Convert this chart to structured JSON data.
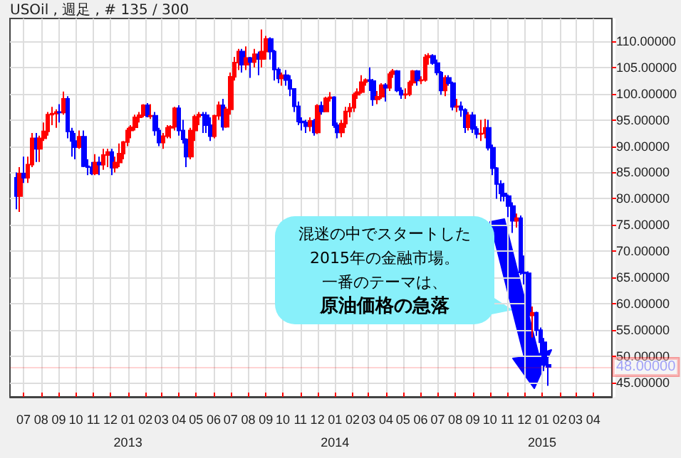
{
  "chart_data": {
    "type": "candlestick",
    "title": "USOil , 週足 , # 135 / 300",
    "colors": [
      "#0000ff",
      "#ff0000",
      "#0000ff",
      "#ff0000",
      "#ff0000",
      "#0000ff",
      "#ff0000",
      "#ff0000",
      "#ff0000",
      "#ff0000",
      "#ff0000",
      "#0000ff",
      "#ff0000",
      "#0000ff",
      "#0000ff",
      "#0000ff",
      "#ff0000",
      "#0000ff",
      "#0000ff",
      "#0000ff",
      "#ff0000",
      "#0000ff",
      "#ff0000",
      "#ff0000",
      "#0000ff",
      "#ff0000",
      "#ff0000",
      "#ff0000",
      "#ff0000",
      "#ff0000",
      "#ff0000",
      "#ff0000",
      "#ff0000",
      "#0000ff",
      "#ff0000",
      "#0000ff",
      "#0000ff",
      "#ff0000",
      "#ff0000",
      "#ff0000",
      "#ff0000",
      "#0000ff",
      "#0000ff",
      "#0000ff",
      "#ff0000",
      "#ff0000",
      "#ff0000",
      "#0000ff",
      "#0000ff",
      "#0000ff",
      "#ff0000",
      "#ff0000",
      "#0000ff",
      "#ff0000",
      "#ff0000",
      "#ff0000",
      "#ff0000",
      "#0000ff",
      "#ff0000",
      "#0000ff",
      "#ff0000",
      "#0000ff",
      "#ff0000",
      "#ff0000",
      "#0000ff",
      "#0000ff",
      "#0000ff",
      "#ff0000",
      "#0000ff",
      "#0000ff",
      "#0000ff",
      "#0000ff",
      "#0000ff",
      "#0000ff",
      "#ff0000",
      "#0000ff",
      "#ff0000",
      "#0000ff",
      "#ff0000",
      "#ff0000",
      "#0000ff",
      "#0000ff",
      "#ff0000",
      "#ff0000",
      "#ff0000",
      "#ff0000",
      "#ff0000",
      "#ff0000",
      "#ff0000",
      "#0000ff",
      "#0000ff",
      "#ff0000",
      "#ff0000",
      "#0000ff",
      "#ff0000",
      "#ff0000",
      "#0000ff",
      "#0000ff",
      "#ff0000",
      "#ff0000",
      "#ff0000",
      "#0000ff",
      "#ff0000",
      "#ff0000",
      "#ff0000",
      "#0000ff",
      "#0000ff",
      "#0000ff",
      "#ff0000",
      "#0000ff",
      "#0000ff",
      "#ff0000",
      "#0000ff",
      "#0000ff",
      "#ff0000",
      "#0000ff",
      "#0000ff",
      "#ff0000",
      "#ff0000",
      "#0000ff",
      "#0000ff",
      "#0000ff",
      "#0000ff",
      "#0000ff",
      "#0000ff",
      "#0000ff",
      "#ff0000",
      "#0000ff",
      "#0000ff",
      "#0000ff",
      "#ff0000",
      "#0000ff",
      "#0000ff",
      "#0000ff",
      "#0000ff"
    ],
    "x": [
      "2012-06-18",
      "2012-06-25",
      "2012-07-02",
      "2012-07-09",
      "2012-07-16",
      "2012-07-23",
      "2012-07-30",
      "2012-08-06",
      "2012-08-13",
      "2012-08-20",
      "2012-08-27",
      "2012-09-03",
      "2012-09-10",
      "2012-09-17",
      "2012-09-24",
      "2012-10-01",
      "2012-10-08",
      "2012-10-15",
      "2012-10-22",
      "2012-10-29",
      "2012-11-05",
      "2012-11-12",
      "2012-11-19",
      "2012-11-26",
      "2012-12-03",
      "2012-12-10",
      "2012-12-17",
      "2012-12-24",
      "2012-12-31",
      "2013-01-07",
      "2013-01-14",
      "2013-01-21",
      "2013-01-28",
      "2013-02-04",
      "2013-02-11",
      "2013-02-18",
      "2013-02-25",
      "2013-03-04",
      "2013-03-11",
      "2013-03-18",
      "2013-03-25",
      "2013-04-01",
      "2013-04-08",
      "2013-04-15",
      "2013-04-22",
      "2013-04-29",
      "2013-05-06",
      "2013-05-13",
      "2013-05-20",
      "2013-05-27",
      "2013-06-03",
      "2013-06-10",
      "2013-06-17",
      "2013-06-24",
      "2013-07-01",
      "2013-07-08",
      "2013-07-15",
      "2013-07-22",
      "2013-07-29",
      "2013-08-05",
      "2013-08-12",
      "2013-08-19",
      "2013-08-26",
      "2013-09-02",
      "2013-09-09",
      "2013-09-16",
      "2013-09-23",
      "2013-09-30",
      "2013-10-07",
      "2013-10-14",
      "2013-10-21",
      "2013-10-28",
      "2013-11-04",
      "2013-11-11",
      "2013-11-18",
      "2013-11-25",
      "2013-12-02",
      "2013-12-09",
      "2013-12-16",
      "2013-12-23",
      "2013-12-30",
      "2014-01-06",
      "2014-01-13",
      "2014-01-20",
      "2014-01-27",
      "2014-02-03",
      "2014-02-10",
      "2014-02-17",
      "2014-02-24",
      "2014-03-03",
      "2014-03-10",
      "2014-03-17",
      "2014-03-24",
      "2014-03-31",
      "2014-04-07",
      "2014-04-14",
      "2014-04-21",
      "2014-04-28",
      "2014-05-05",
      "2014-05-12",
      "2014-05-19",
      "2014-05-26",
      "2014-06-02",
      "2014-06-09",
      "2014-06-16",
      "2014-06-23",
      "2014-06-30",
      "2014-07-07",
      "2014-07-14",
      "2014-07-21",
      "2014-07-28",
      "2014-08-04",
      "2014-08-11",
      "2014-08-18",
      "2014-08-25",
      "2014-09-01",
      "2014-09-08",
      "2014-09-15",
      "2014-09-22",
      "2014-09-29",
      "2014-10-06",
      "2014-10-13",
      "2014-10-20",
      "2014-10-27",
      "2014-11-03",
      "2014-11-10",
      "2014-11-17",
      "2014-11-24",
      "2014-12-01",
      "2014-12-08",
      "2014-12-15",
      "2014-12-22",
      "2014-12-29",
      "2015-01-05",
      "2015-01-12"
    ],
    "ohlc": [
      [
        84,
        85,
        78,
        80.5
      ],
      [
        80.5,
        86,
        77.5,
        84.8
      ],
      [
        84.8,
        88,
        83,
        84
      ],
      [
        84,
        88,
        83,
        86.5
      ],
      [
        86.5,
        92.5,
        86,
        91.5
      ],
      [
        91.5,
        92.5,
        87,
        89.5
      ],
      [
        89.5,
        92,
        87,
        91.5
      ],
      [
        91.5,
        94.5,
        91,
        92.8
      ],
      [
        92.8,
        96.5,
        92,
        96
      ],
      [
        96,
        97.5,
        94,
        96.2
      ],
      [
        96.2,
        97,
        93.5,
        96.5
      ],
      [
        96.5,
        98,
        94.5,
        96.4
      ],
      [
        96.4,
        100.4,
        96,
        99
      ],
      [
        99,
        99.5,
        91.5,
        92.8
      ],
      [
        92.8,
        93.5,
        88,
        91
      ],
      [
        91,
        92.5,
        87.5,
        89.8
      ],
      [
        89.8,
        93,
        89.5,
        91.8
      ],
      [
        91.8,
        93,
        86,
        86.2
      ],
      [
        86.2,
        87.5,
        84.5,
        86
      ],
      [
        86,
        87,
        84.5,
        84.8
      ],
      [
        84.8,
        88.5,
        84.5,
        86.9
      ],
      [
        86.9,
        88,
        84.5,
        86.5
      ],
      [
        86.5,
        89.5,
        85.5,
        88.3
      ],
      [
        88.3,
        89.5,
        86,
        88.9
      ],
      [
        88.9,
        89.5,
        84.5,
        85.9
      ],
      [
        85.9,
        88,
        85,
        86.9
      ],
      [
        86.9,
        90.5,
        86,
        88.6
      ],
      [
        88.6,
        91,
        87.5,
        90.8
      ],
      [
        90.8,
        93.5,
        90,
        93
      ],
      [
        93,
        94,
        91.5,
        93.6
      ],
      [
        93.6,
        96,
        93,
        95.5
      ],
      [
        95.5,
        96.5,
        94.5,
        95.9
      ],
      [
        95.9,
        98,
        95.5,
        97.8
      ],
      [
        97.8,
        98.2,
        95.5,
        95.7
      ],
      [
        95.7,
        98,
        95.2,
        95.8
      ],
      [
        95.8,
        96.5,
        92,
        93
      ],
      [
        93,
        93.5,
        90,
        90.7
      ],
      [
        90.7,
        92.5,
        89.5,
        91.9
      ],
      [
        91.9,
        94,
        91.5,
        93.5
      ],
      [
        93.5,
        94,
        91.5,
        93.7
      ],
      [
        93.7,
        97.5,
        93,
        97.2
      ],
      [
        97.2,
        97.8,
        92,
        93
      ],
      [
        93,
        95,
        90.5,
        91.3
      ],
      [
        91.3,
        91.5,
        86,
        88
      ],
      [
        88,
        93.5,
        87.5,
        93
      ],
      [
        93,
        96,
        91,
        95.6
      ],
      [
        95.6,
        96.5,
        94,
        96
      ],
      [
        96,
        96.5,
        92.5,
        95.9
      ],
      [
        95.9,
        96.5,
        92.5,
        94
      ],
      [
        94,
        95.5,
        91,
        91.9
      ],
      [
        91.9,
        96,
        91.5,
        95.8
      ],
      [
        95.8,
        98.5,
        95,
        97.8
      ],
      [
        97.8,
        99,
        93,
        93.7
      ],
      [
        93.7,
        97.5,
        93.5,
        97
      ],
      [
        97,
        104,
        96,
        103.2
      ],
      [
        103.2,
        107,
        102.5,
        105.9
      ],
      [
        105.9,
        108.5,
        104.5,
        108
      ],
      [
        108,
        108.5,
        104,
        105.5
      ],
      [
        105.5,
        109,
        104.5,
        106.8
      ],
      [
        106.8,
        107,
        103,
        106
      ],
      [
        106,
        108.5,
        105,
        107.5
      ],
      [
        107.5,
        108,
        103.5,
        106.6
      ],
      [
        106.6,
        112.2,
        105,
        108
      ],
      [
        108,
        111,
        106.5,
        110.4
      ],
      [
        110.4,
        110.7,
        106.5,
        108
      ],
      [
        108,
        108.3,
        102.5,
        104.6
      ],
      [
        104.6,
        105,
        102,
        102.9
      ],
      [
        102.9,
        104,
        101.5,
        103.5
      ],
      [
        103.5,
        104.5,
        101.5,
        102.6
      ],
      [
        102.6,
        103.5,
        99.5,
        100.9
      ],
      [
        100.9,
        101,
        96.5,
        97.6
      ],
      [
        97.6,
        98.5,
        94,
        94.7
      ],
      [
        94.7,
        95.5,
        93,
        94.5
      ],
      [
        94.5,
        95,
        92.5,
        93.8
      ],
      [
        93.8,
        95.5,
        92.8,
        94.8
      ],
      [
        94.8,
        95.2,
        92,
        92.6
      ],
      [
        92.6,
        98,
        92.3,
        97.7
      ],
      [
        97.7,
        98.5,
        96,
        96.6
      ],
      [
        96.6,
        99.4,
        96.5,
        99.1
      ],
      [
        99.1,
        100.3,
        98.5,
        99.3
      ],
      [
        99.3,
        99.5,
        93.5,
        94
      ],
      [
        94,
        94.5,
        91.5,
        92.6
      ],
      [
        92.6,
        95,
        91.7,
        94.3
      ],
      [
        94.3,
        97.5,
        93.5,
        96.6
      ],
      [
        96.6,
        98.2,
        95.5,
        97.3
      ],
      [
        97.3,
        100.2,
        96.5,
        99.8
      ],
      [
        99.8,
        101,
        99,
        100.3
      ],
      [
        100.3,
        103.5,
        100,
        102.2
      ],
      [
        102.2,
        102.9,
        101.5,
        102.6
      ],
      [
        102.6,
        105,
        100.5,
        102.4
      ],
      [
        102.4,
        102.8,
        97.7,
        98.9
      ],
      [
        98.9,
        100.5,
        98,
        99.4
      ],
      [
        99.4,
        102,
        99,
        101.6
      ],
      [
        101.6,
        102,
        98.5,
        101.1
      ],
      [
        101.1,
        104.2,
        100.5,
        103.7
      ],
      [
        103.7,
        104.7,
        103,
        104.3
      ],
      [
        104.3,
        104.5,
        100.3,
        100.6
      ],
      [
        100.6,
        101.2,
        99,
        99.8
      ],
      [
        99.8,
        101,
        99,
        99.9
      ],
      [
        99.9,
        102.5,
        99.5,
        102.1
      ],
      [
        102.1,
        104.5,
        101.5,
        104.3
      ],
      [
        104.3,
        104.5,
        101.5,
        102.5
      ],
      [
        102.5,
        103.3,
        101.8,
        102.6
      ],
      [
        102.6,
        107.5,
        102.3,
        106.9
      ],
      [
        106.9,
        107.7,
        105.5,
        107.2
      ],
      [
        107.2,
        107.5,
        105.5,
        105.8
      ],
      [
        105.8,
        106.5,
        103.5,
        104
      ],
      [
        104,
        104.3,
        99.8,
        100.6
      ],
      [
        100.6,
        103.5,
        99.5,
        103
      ],
      [
        103,
        103.5,
        101.5,
        102
      ],
      [
        102,
        102.3,
        96.8,
        97.5
      ],
      [
        97.5,
        99,
        96.5,
        97.6
      ],
      [
        97.6,
        98.5,
        95.6,
        96.9
      ],
      [
        96.9,
        97.2,
        92.5,
        93.6
      ],
      [
        93.6,
        96.5,
        93,
        95.9
      ],
      [
        95.9,
        96.5,
        92.5,
        93.3
      ],
      [
        93.3,
        93.8,
        91.5,
        92.3
      ],
      [
        92.3,
        95,
        91,
        92.4
      ],
      [
        92.4,
        95.2,
        91.5,
        93.5
      ],
      [
        93.5,
        95,
        89.2,
        89.7
      ],
      [
        89.7,
        90.3,
        84.5,
        85.8
      ],
      [
        85.8,
        86,
        80,
        82.8
      ],
      [
        82.8,
        83.5,
        79.5,
        81
      ],
      [
        81,
        83,
        79.5,
        80.5
      ],
      [
        80.5,
        80.8,
        76.5,
        78.6
      ],
      [
        78.6,
        79.3,
        73.5,
        75.8
      ],
      [
        75.8,
        77.2,
        74.5,
        76.3
      ],
      [
        76.3,
        76.8,
        65.5,
        66
      ],
      [
        66,
        69.2,
        63.7,
        65.8
      ],
      [
        65.8,
        66.2,
        57.3,
        57.8
      ],
      [
        57.8,
        59.5,
        53.6,
        58.3
      ],
      [
        58.3,
        58.5,
        53.9,
        55
      ],
      [
        55,
        55.5,
        50.6,
        52.7
      ],
      [
        52.7,
        53.5,
        47.2,
        48.4
      ],
      [
        48.4,
        49.6,
        44.4,
        48
      ]
    ],
    "xlim": [
      "2012-06-07",
      "2015-05-04"
    ],
    "xticks": [
      {
        "value": "2012-07-01",
        "label": "07"
      },
      {
        "value": "2012-08-01",
        "label": "08"
      },
      {
        "value": "2012-09-01",
        "label": "09"
      },
      {
        "value": "2012-10-01",
        "label": "10"
      },
      {
        "value": "2012-11-01",
        "label": "11"
      },
      {
        "value": "2012-12-01",
        "label": "12"
      },
      {
        "value": "2013-01-01",
        "label": "01\n2013"
      },
      {
        "value": "2013-02-01",
        "label": "02"
      },
      {
        "value": "2013-03-01",
        "label": "03"
      },
      {
        "value": "2013-04-01",
        "label": "04"
      },
      {
        "value": "2013-05-01",
        "label": "05"
      },
      {
        "value": "2013-06-01",
        "label": "06"
      },
      {
        "value": "2013-07-01",
        "label": "07"
      },
      {
        "value": "2013-08-01",
        "label": "08"
      },
      {
        "value": "2013-09-01",
        "label": "09"
      },
      {
        "value": "2013-10-01",
        "label": "10"
      },
      {
        "value": "2013-11-01",
        "label": "11"
      },
      {
        "value": "2013-12-01",
        "label": "12"
      },
      {
        "value": "2014-01-01",
        "label": "01\n2014"
      },
      {
        "value": "2014-02-01",
        "label": "02"
      },
      {
        "value": "2014-03-01",
        "label": "03"
      },
      {
        "value": "2014-04-01",
        "label": "04"
      },
      {
        "value": "2014-05-01",
        "label": "05"
      },
      {
        "value": "2014-06-01",
        "label": "06"
      },
      {
        "value": "2014-07-01",
        "label": "07"
      },
      {
        "value": "2014-08-01",
        "label": "08"
      },
      {
        "value": "2014-09-01",
        "label": "09"
      },
      {
        "value": "2014-10-01",
        "label": "10"
      },
      {
        "value": "2014-11-01",
        "label": "11"
      },
      {
        "value": "2014-12-01",
        "label": "12"
      },
      {
        "value": "2015-01-01",
        "label": "01\n2015"
      },
      {
        "value": "2015-02-01",
        "label": "02"
      },
      {
        "value": "2015-03-01",
        "label": "03"
      },
      {
        "value": "2015-04-01",
        "label": "04"
      }
    ],
    "ylim": [
      42.3,
      114.3
    ],
    "yticks": [
      {
        "value": 45,
        "label": "45.00000"
      },
      {
        "value": 50,
        "label": "50.00000"
      },
      {
        "value": 55,
        "label": "55.00000"
      },
      {
        "value": 60,
        "label": "60.00000"
      },
      {
        "value": 65,
        "label": "65.00000"
      },
      {
        "value": 70,
        "label": "70.00000"
      },
      {
        "value": 75,
        "label": "75.00000"
      },
      {
        "value": 80,
        "label": "80.00000"
      },
      {
        "value": 85,
        "label": "85.00000"
      },
      {
        "value": 90,
        "label": "90.00000"
      },
      {
        "value": 95,
        "label": "95.00000"
      },
      {
        "value": 100,
        "label": "100.00000"
      },
      {
        "value": 105,
        "label": "105.00000"
      },
      {
        "value": 110,
        "label": "110.00000"
      }
    ],
    "ref_lines": [
      {
        "axis": "y",
        "value": 48,
        "label": "48.00000",
        "color": "#ff0000"
      }
    ],
    "annotations": [
      "混迷の中でスタートした2015年の金融市場。",
      "一番のテーマは、",
      "原油価格の急落"
    ],
    "grid": true
  }
}
